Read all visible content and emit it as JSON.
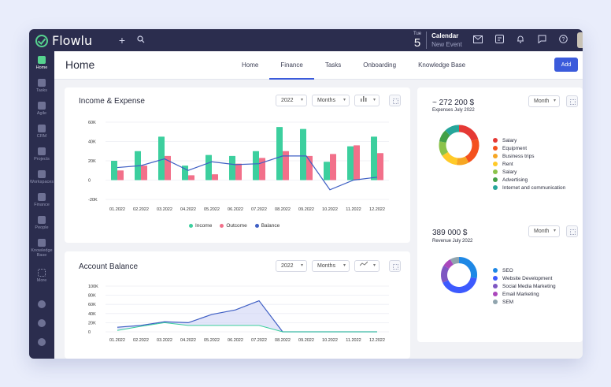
{
  "app": {
    "name": "Flowlu"
  },
  "topbar": {
    "calendar": {
      "dow": "Tue",
      "day": "5",
      "title": "Calendar",
      "subtitle": "New Event"
    }
  },
  "sidebar": {
    "items": [
      {
        "label": "Home",
        "icon": "home-icon",
        "active": true
      },
      {
        "label": "Tasks",
        "icon": "tasks-icon"
      },
      {
        "label": "Agile",
        "icon": "agile-icon"
      },
      {
        "label": "CRM",
        "icon": "crm-icon"
      },
      {
        "label": "Projects",
        "icon": "projects-icon"
      },
      {
        "label": "Workspaces",
        "icon": "workspaces-icon"
      },
      {
        "label": "Finance",
        "icon": "finance-icon"
      },
      {
        "label": "People",
        "icon": "people-icon"
      },
      {
        "label": "Knowledge Base",
        "icon": "knowledge-base-icon"
      },
      {
        "label": "More",
        "icon": "more-icon"
      }
    ]
  },
  "header": {
    "title": "Home",
    "tabs": [
      "Home",
      "Finance",
      "Tasks",
      "Onboarding",
      "Knowledge Base"
    ],
    "active_tab": "Finance",
    "add_label": "Add"
  },
  "income_card": {
    "title": "Income & Expense",
    "year": "2022",
    "period": "Months",
    "legend": [
      "Income",
      "Outcome",
      "Balance"
    ]
  },
  "balance_card": {
    "title": "Account Balance",
    "year": "2022",
    "period": "Months"
  },
  "expenses_card": {
    "amount": "~ 272 200 $",
    "subtitle": "Expenses July 2022",
    "period": "Month"
  },
  "revenue_card": {
    "amount": "389 000 $",
    "subtitle": "Revenue July 2022",
    "period": "Month"
  },
  "colors": {
    "accent": "#3b5bdb",
    "income": "#3ccf9e",
    "outcome": "#f2708a",
    "balance": "#3f5fc4",
    "sidebar": "#2b2d4e"
  },
  "chart_data": [
    {
      "type": "bar",
      "title": "Income & Expense",
      "categories": [
        "01.2022",
        "02.2022",
        "03.2022",
        "04.2022",
        "05.2022",
        "06.2022",
        "07.2022",
        "08.2022",
        "09.2022",
        "10.2022",
        "11.2022",
        "12.2022"
      ],
      "yticks": [
        "60K",
        "40K",
        "20K",
        "0",
        "-20K"
      ],
      "ylim": [
        -20000,
        60000
      ],
      "series": [
        {
          "name": "Income",
          "values": [
            20000,
            30000,
            45000,
            15000,
            26000,
            25000,
            30000,
            55000,
            53000,
            19000,
            35000,
            45000
          ]
        },
        {
          "name": "Outcome",
          "values": [
            10000,
            15000,
            25000,
            5000,
            6000,
            17000,
            23000,
            30000,
            25000,
            27000,
            36000,
            28000
          ]
        },
        {
          "name": "Balance",
          "values": [
            13000,
            15000,
            22000,
            10000,
            19000,
            16000,
            17000,
            25000,
            25000,
            -10000,
            0,
            3000
          ]
        }
      ]
    },
    {
      "type": "area",
      "title": "Account Balance",
      "categories": [
        "01.2022",
        "02.2022",
        "03.2022",
        "04.2022",
        "05.2022",
        "06.2022",
        "07.2022",
        "08.2022",
        "09.2022",
        "10.2022",
        "11.2022",
        "12.2022"
      ],
      "yticks": [
        "100K",
        "80K",
        "60K",
        "40K",
        "20K",
        "0"
      ],
      "ylim": [
        0,
        100000
      ],
      "series": [
        {
          "values": [
            10000,
            14000,
            22000,
            20000,
            38000,
            48000,
            68000,
            0,
            0,
            0,
            0,
            0
          ]
        },
        {
          "values": [
            3000,
            12000,
            20000,
            14000,
            14000,
            14000,
            14000,
            0,
            0,
            0,
            0,
            0
          ]
        }
      ]
    },
    {
      "type": "pie",
      "title": "Expenses July 2022",
      "labels": [
        "Salary",
        "Equipment",
        "Business trips",
        "Rent",
        "Salary",
        "Advertising",
        "Internet and communication"
      ],
      "values": [
        20,
        22,
        10,
        14,
        12,
        10,
        12
      ],
      "colors": [
        "#e53935",
        "#f4511e",
        "#f6a623",
        "#ffca28",
        "#8bc34a",
        "#43a047",
        "#26a69a"
      ]
    },
    {
      "type": "pie",
      "title": "Revenue July 2022",
      "labels": [
        "SEO",
        "Website Development",
        "Social Media Marketing",
        "Email Marketing",
        "SEM"
      ],
      "values": [
        28,
        40,
        16,
        8,
        8
      ],
      "colors": [
        "#1e88e5",
        "#3d5afe",
        "#7e57c2",
        "#ab47bc",
        "#90a4ae"
      ]
    }
  ]
}
